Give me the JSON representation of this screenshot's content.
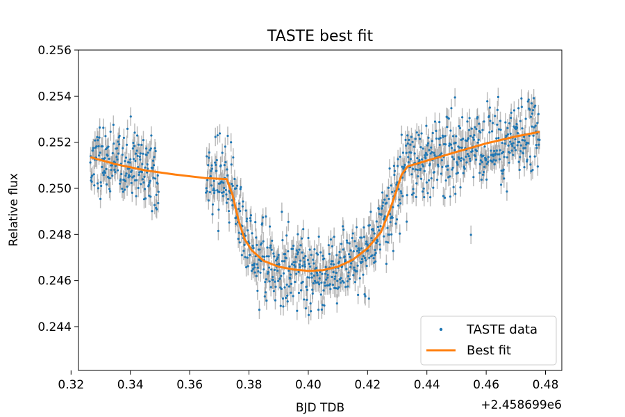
{
  "chart_data": {
    "type": "scatter",
    "title": "TASTE best fit",
    "xlabel": "BJD TDB",
    "ylabel": "Relative flux",
    "x_offset_label": "+2.458699e6",
    "xlim": [
      0.3225,
      0.4855
    ],
    "ylim": [
      0.2421,
      0.256
    ],
    "x_ticks": [
      0.32,
      0.34,
      0.36,
      0.38,
      0.4,
      0.42,
      0.44,
      0.46,
      0.48
    ],
    "x_tick_labels": [
      "0.32",
      "0.34",
      "0.36",
      "0.38",
      "0.40",
      "0.42",
      "0.44",
      "0.46",
      "0.48"
    ],
    "y_ticks": [
      0.244,
      0.246,
      0.248,
      0.25,
      0.252,
      0.254,
      0.256
    ],
    "y_tick_labels": [
      "0.244",
      "0.246",
      "0.248",
      "0.250",
      "0.252",
      "0.254",
      "0.256"
    ],
    "grid": false,
    "legend_position": "bottom-right",
    "colors": {
      "data": "#1f77b4",
      "errorbar": "#a0a0a0",
      "fit": "#ff7f0e"
    },
    "series": [
      {
        "name": "TASTE data",
        "kind": "scatter-errorbar",
        "segments": [
          [
            0.3265,
            0.3495
          ],
          [
            0.3655,
            0.478
          ]
        ],
        "error": 0.0004,
        "points_per_segment": [
          190,
          920
        ],
        "trend_note": "noisy scatter following best-fit curve, sigma approx 0.0008"
      },
      {
        "name": "Best fit",
        "kind": "line",
        "x": [
          0.3265,
          0.335,
          0.345,
          0.355,
          0.365,
          0.3725,
          0.3745,
          0.3765,
          0.3785,
          0.381,
          0.385,
          0.39,
          0.395,
          0.4,
          0.405,
          0.41,
          0.415,
          0.42,
          0.4245,
          0.4275,
          0.43,
          0.4315,
          0.4335,
          0.44,
          0.45,
          0.46,
          0.47,
          0.478
        ],
        "y": [
          0.25135,
          0.25105,
          0.25078,
          0.2506,
          0.25045,
          0.2504,
          0.2497,
          0.2486,
          0.2478,
          0.2473,
          0.24685,
          0.2466,
          0.24648,
          0.24642,
          0.24645,
          0.2466,
          0.2469,
          0.2474,
          0.2481,
          0.24905,
          0.25,
          0.2506,
          0.25095,
          0.2512,
          0.25158,
          0.25195,
          0.25225,
          0.25245
        ]
      }
    ]
  }
}
